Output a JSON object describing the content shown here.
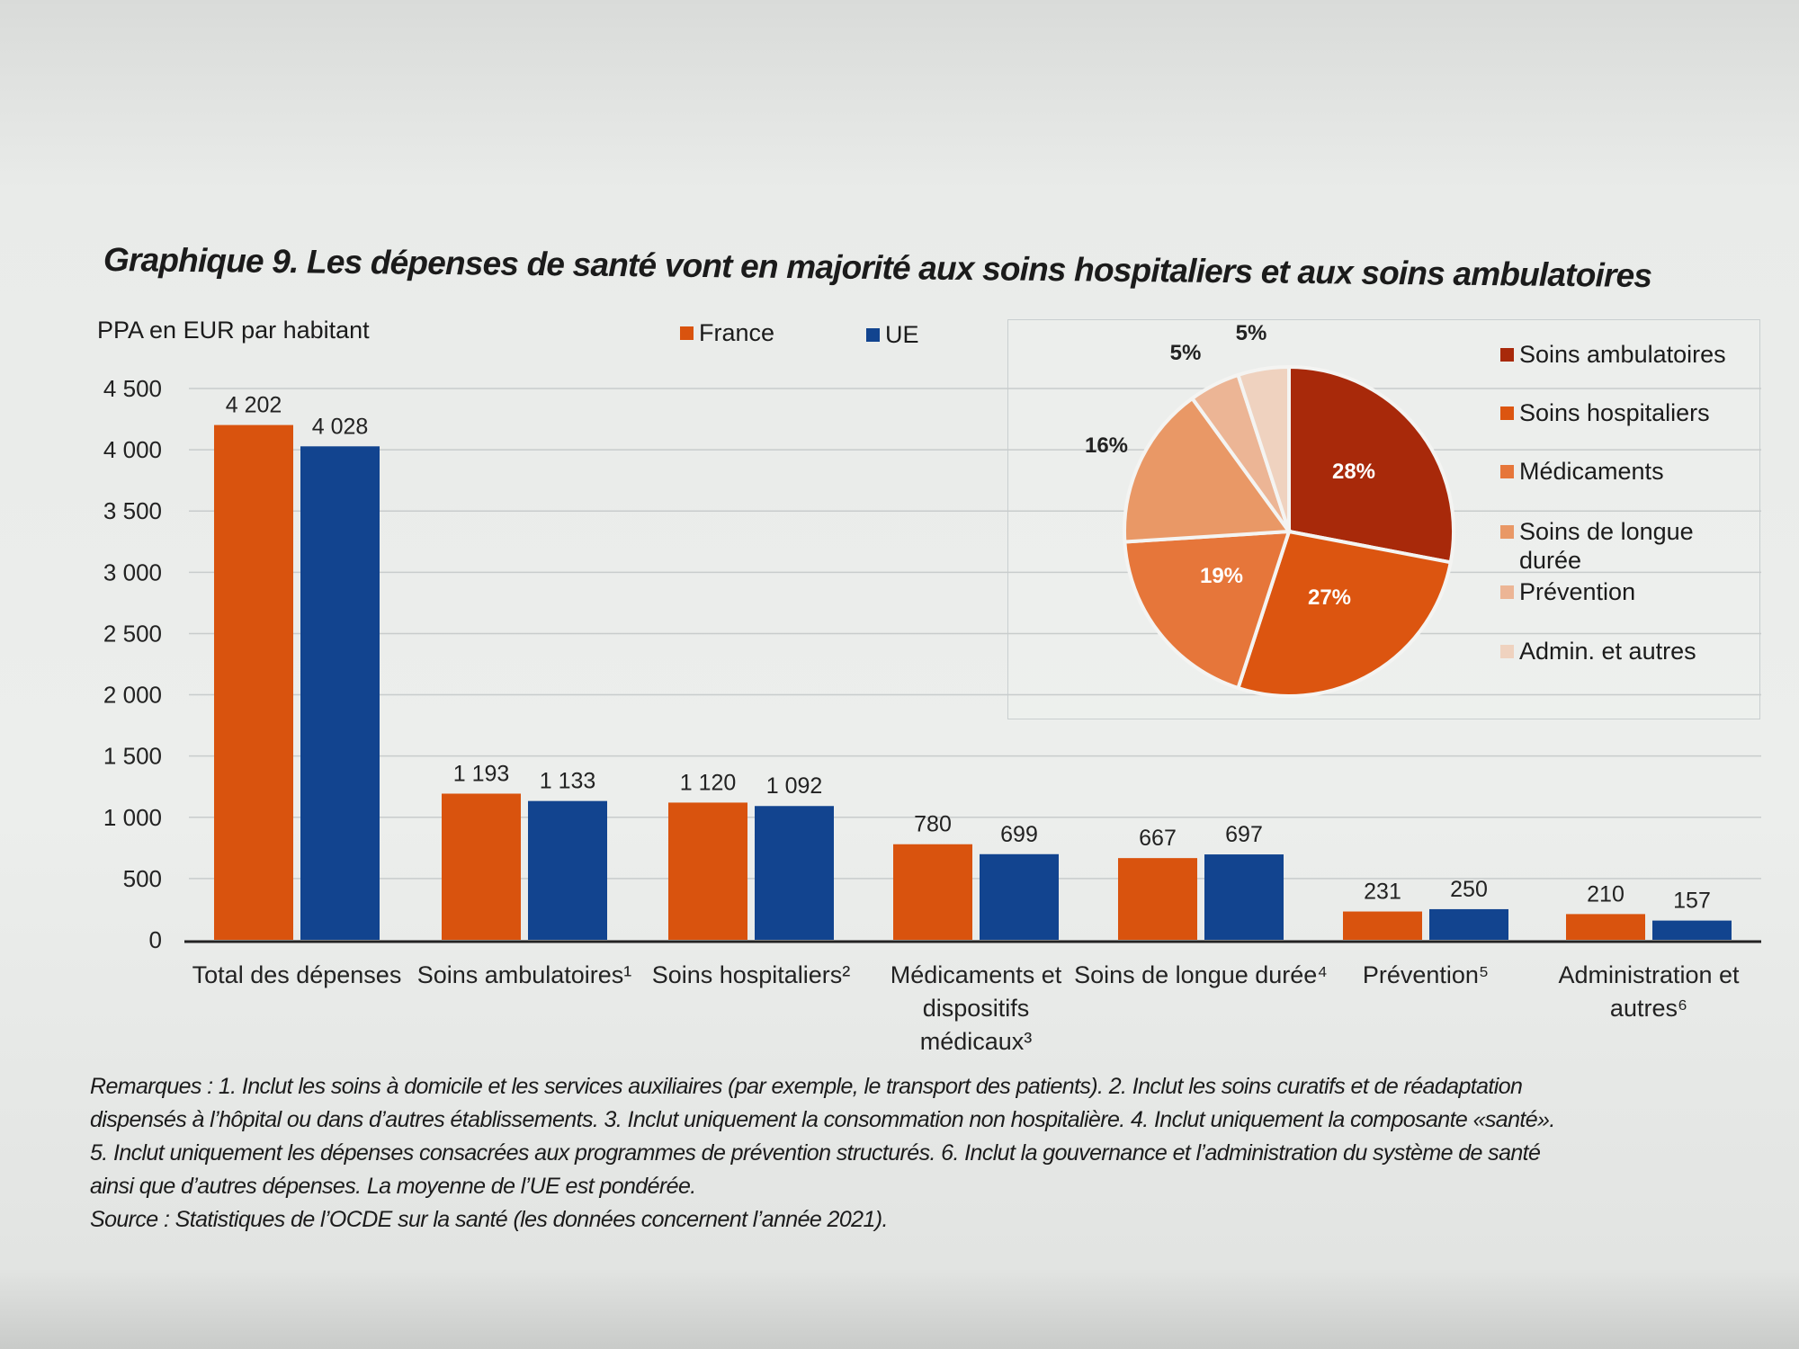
{
  "title": "Graphique 9. Les dépenses de santé vont en majorité aux soins hospitaliers et aux soins ambulatoires",
  "chart_data": [
    {
      "type": "bar",
      "ylabel": "PPA en EUR par habitant",
      "ylim": [
        0,
        4500
      ],
      "yticks": [
        "0",
        "500",
        "1 000",
        "1 500",
        "2 000",
        "2 500",
        "3 000",
        "3 500",
        "4 000",
        "4 500"
      ],
      "ytick_values": [
        0,
        500,
        1000,
        1500,
        2000,
        2500,
        3000,
        3500,
        4000,
        4500
      ],
      "grid": true,
      "legend_placement": "top",
      "categories": [
        "Total des dépenses",
        "Soins ambulatoires¹",
        "Soins hospitaliers²",
        "Médicaments et dispositifs médicaux³",
        "Soins de longue durée⁴",
        "Prévention⁵",
        "Administration et autres⁶"
      ],
      "series": [
        {
          "name": "France",
          "color": "#d9530e",
          "values": [
            4202,
            1193,
            1120,
            780,
            667,
            231,
            210
          ],
          "labels": [
            "4 202",
            "1 193",
            "1 120",
            "780",
            "667",
            "231",
            "210"
          ]
        },
        {
          "name": "UE",
          "color": "#12448f",
          "values": [
            4028,
            1133,
            1092,
            699,
            697,
            250,
            157
          ],
          "labels": [
            "4 028",
            "1 133",
            "1 092",
            "699",
            "697",
            "250",
            "157"
          ]
        }
      ]
    },
    {
      "type": "pie",
      "slices": [
        {
          "name": "Soins ambulatoires",
          "value": 28,
          "label": "28%",
          "color": "#a8290a"
        },
        {
          "name": "Soins hospitaliers",
          "value": 27,
          "label": "27%",
          "color": "#dc5510"
        },
        {
          "name": "Médicaments",
          "value": 19,
          "label": "19%",
          "color": "#e6763a"
        },
        {
          "name": "Soins de longue durée",
          "value": 16,
          "label": "16%",
          "color": "#e99866"
        },
        {
          "name": "Prévention",
          "value": 5,
          "label": "5%",
          "color": "#ecb595"
        },
        {
          "name": "Admin. et autres",
          "value": 5,
          "label": "5%",
          "color": "#efd2bf"
        }
      ],
      "legend_placement": "right"
    }
  ],
  "notes": [
    "Remarques : 1. Inclut les soins à domicile et les services auxiliaires (par exemple, le transport des patients). 2. Inclut les soins curatifs et de réadaptation",
    "dispensés à l’hôpital ou dans d’autres établissements. 3. Inclut uniquement la consommation non hospitalière. 4. Inclut uniquement la composante «santé».",
    "5. Inclut uniquement les dépenses consacrées aux programmes de prévention structurés. 6. Inclut la gouvernance et l’administration du système de santé",
    "ainsi que d’autres dépenses. La moyenne de l’UE est pondérée.",
    "Source : Statistiques de l’OCDE sur la santé (les données concernent l’année 2021)."
  ]
}
